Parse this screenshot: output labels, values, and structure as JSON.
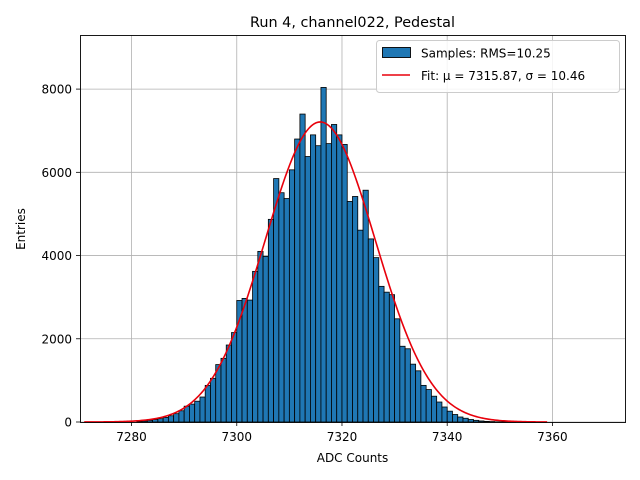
{
  "chart_data": {
    "type": "bar",
    "title": "Run 4, channel022, Pedestal",
    "xlabel": "ADC Counts",
    "ylabel": "Entries",
    "xlim": [
      7270.2,
      7373.8
    ],
    "ylim": [
      0,
      9300
    ],
    "xticks": [
      7280,
      7300,
      7320,
      7340,
      7360
    ],
    "yticks": [
      0,
      2000,
      4000,
      6000,
      8000
    ],
    "grid": true,
    "legend_position": "top-right",
    "bin_width": 1,
    "bar_color": "#1f77b4",
    "bar_edge_color": "#000000",
    "fit_color": "#e8000b",
    "series": [
      {
        "name": "Samples: RMS=10.25",
        "kind": "histogram",
        "x": [
          7281,
          7282,
          7283,
          7284,
          7285,
          7286,
          7287,
          7288,
          7289,
          7290,
          7291,
          7292,
          7293,
          7294,
          7295,
          7296,
          7297,
          7298,
          7299,
          7300,
          7301,
          7302,
          7303,
          7304,
          7305,
          7306,
          7307,
          7308,
          7309,
          7310,
          7311,
          7312,
          7313,
          7314,
          7315,
          7316,
          7317,
          7318,
          7319,
          7320,
          7321,
          7322,
          7323,
          7324,
          7325,
          7326,
          7327,
          7328,
          7329,
          7330,
          7331,
          7332,
          7333,
          7334,
          7335,
          7336,
          7337,
          7338,
          7339,
          7340,
          7341,
          7342,
          7343,
          7344,
          7345,
          7346,
          7347,
          7348,
          7349,
          7350,
          7351,
          7352,
          7353,
          7354
        ],
        "values": [
          15,
          25,
          40,
          60,
          80,
          110,
          150,
          200,
          270,
          380,
          430,
          500,
          600,
          880,
          1050,
          1380,
          1530,
          1850,
          2150,
          2920,
          2970,
          2930,
          3620,
          4100,
          3980,
          4870,
          5850,
          5510,
          5370,
          6060,
          6800,
          7400,
          6380,
          6900,
          6640,
          8040,
          6690,
          7150,
          6900,
          6670,
          5300,
          5420,
          4610,
          5570,
          4400,
          3950,
          3260,
          3120,
          3060,
          2480,
          1820,
          1760,
          1390,
          1230,
          880,
          780,
          620,
          480,
          360,
          260,
          180,
          120,
          90,
          60,
          40,
          25,
          15,
          10,
          5,
          3,
          2,
          1,
          0,
          0
        ]
      },
      {
        "name": "Fit: μ = 7315.87, σ = 10.46",
        "kind": "gaussian-fit",
        "mu": 7315.87,
        "sigma": 10.46,
        "amplitude": 7210,
        "x_range": [
          7271,
          7359
        ]
      }
    ]
  }
}
